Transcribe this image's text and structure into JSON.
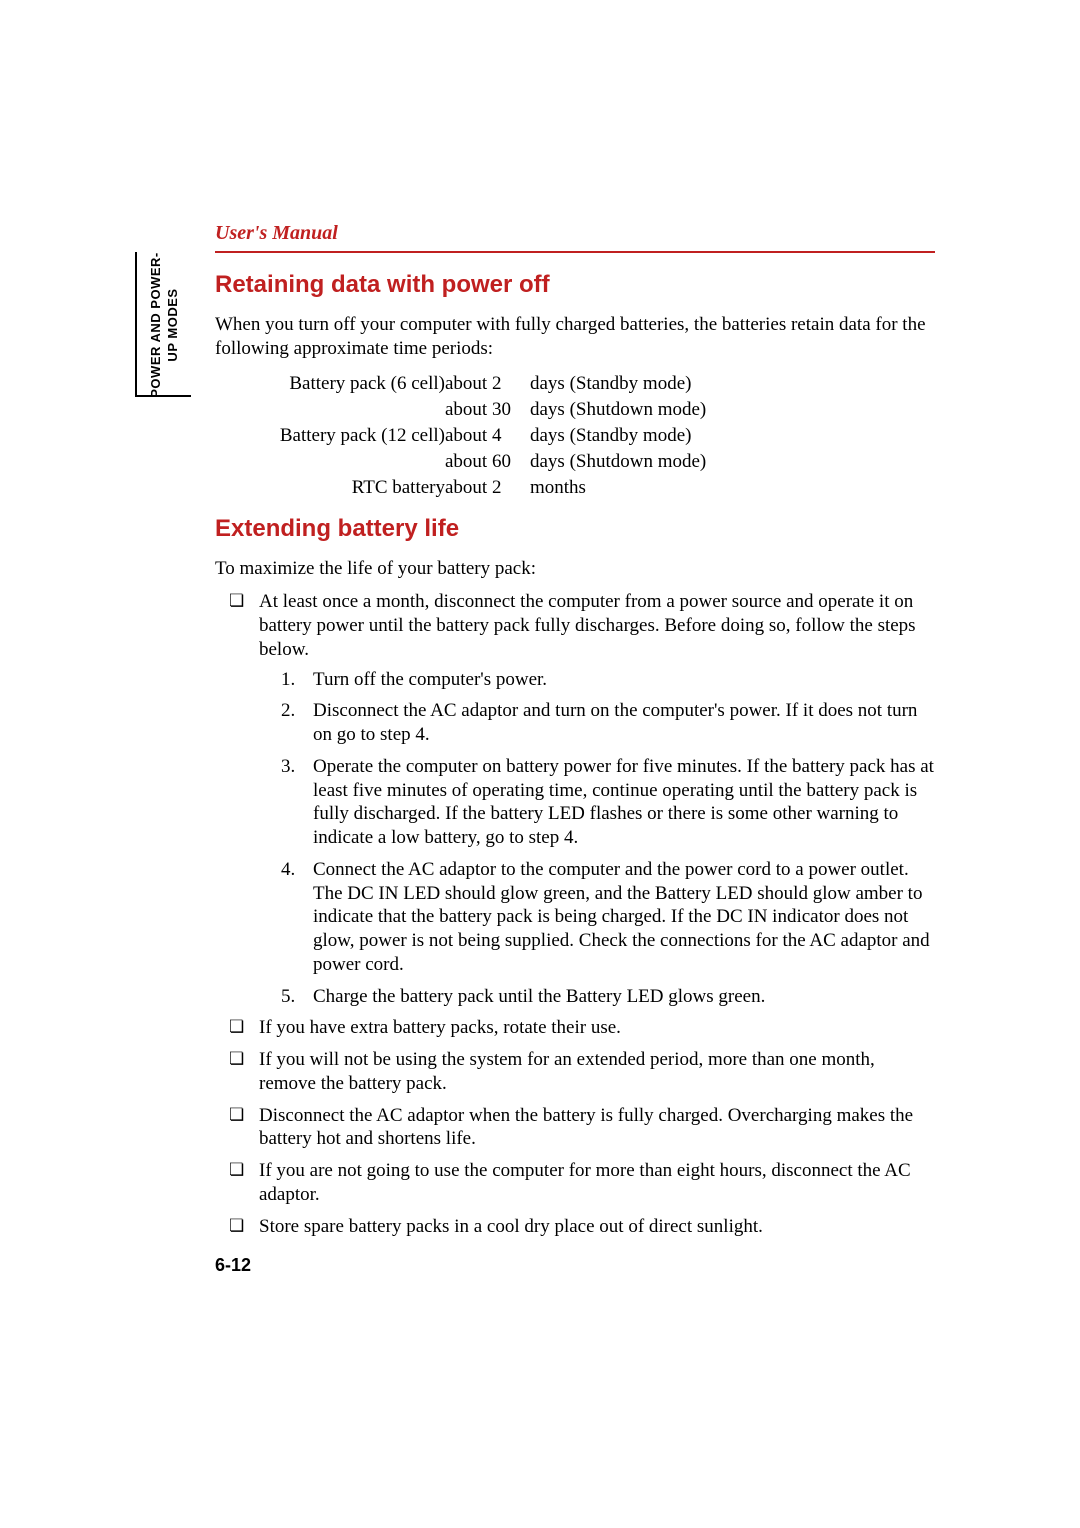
{
  "header": {
    "title": "User's Manual"
  },
  "sideTab": {
    "line1": "POWER AND POWER-",
    "line2": "UP MODES"
  },
  "section1": {
    "heading": "Retaining data with power off",
    "intro": "When you turn off your computer with fully charged batteries, the batteries retain data for the following approximate time periods:",
    "rows": [
      {
        "label": "Battery pack (6 cell)",
        "value": "about 2",
        "unit": "days (Standby mode)"
      },
      {
        "label": "",
        "value": "about 30",
        "unit": "days (Shutdown mode)"
      },
      {
        "label": "Battery pack (12 cell)",
        "value": "about 4",
        "unit": "days (Standby mode)"
      },
      {
        "label": "",
        "value": "about 60",
        "unit": "days (Shutdown mode)"
      },
      {
        "label": "RTC battery",
        "value": "about 2",
        "unit": "months"
      }
    ]
  },
  "section2": {
    "heading": "Extending battery life",
    "intro": "To maximize the life of your battery pack:",
    "bullets": [
      {
        "text": "At least once a month, disconnect the computer from a power source and operate it on battery power until the battery pack fully discharges. Before doing so, follow the steps below.",
        "steps": [
          "Turn off the computer's power.",
          "Disconnect the AC adaptor and turn on the computer's power. If it does not turn on go to step 4.",
          "Operate the computer on battery power for five minutes. If the battery pack has at least five minutes of operating time, continue operating until the battery pack is fully discharged. If the battery LED flashes or there is some other warning to indicate a low battery, go to step 4.",
          "Connect the AC adaptor to the computer and the power cord to a power outlet. The DC IN LED should glow green, and the Battery LED should glow amber to indicate that the battery pack is being charged. If the DC IN indicator does not glow, power is not being supplied. Check the connections for the AC adaptor and power cord.",
          "Charge the battery pack until the Battery LED glows green."
        ]
      },
      {
        "text": "If you have extra battery packs, rotate their use."
      },
      {
        "text": "If you will not be using the system for an extended period, more than one month, remove the battery pack."
      },
      {
        "text": "Disconnect the AC adaptor when the battery is fully charged. Overcharging makes the battery hot and shortens life."
      },
      {
        "text": "If you are not going to use the computer for more than eight hours, disconnect the AC adaptor."
      },
      {
        "text": "Store spare battery packs in a cool dry place out of direct sunlight."
      }
    ]
  },
  "pageNumber": "6-12",
  "colors": {
    "accent": "#c02020",
    "text": "#000000",
    "background": "#ffffff"
  }
}
